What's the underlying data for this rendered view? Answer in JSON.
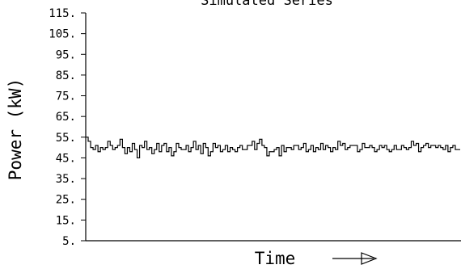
{
  "chart_data": {
    "type": "line",
    "title": "Simulated Series",
    "xlabel": "Time",
    "ylabel": "Power (kW)",
    "ylim": [
      5,
      115
    ],
    "y_ticks": [
      "115.",
      "105.",
      "95.",
      "85.",
      "75.",
      "65.",
      "55.",
      "45.",
      "35.",
      "25.",
      "15.",
      "5."
    ],
    "y_tick_values": [
      115,
      105,
      95,
      85,
      75,
      65,
      55,
      45,
      35,
      25,
      15,
      5
    ],
    "grid": false,
    "series": [
      {
        "values": [
          55,
          53,
          50,
          49,
          51,
          48,
          50,
          49,
          50,
          53,
          51,
          49,
          50,
          51,
          54,
          50,
          47,
          50,
          48,
          52,
          49,
          45,
          51,
          50,
          53,
          49,
          50,
          47,
          49,
          52,
          48,
          51,
          52,
          48,
          50,
          46,
          48,
          52,
          50,
          49,
          49,
          51,
          48,
          50,
          53,
          49,
          51,
          47,
          52,
          50,
          46,
          48,
          52,
          50,
          51,
          48,
          49,
          51,
          48,
          50,
          49,
          48,
          50,
          51,
          49,
          49,
          51,
          51,
          53,
          49,
          52,
          54,
          51,
          50,
          46,
          48,
          48,
          49,
          50,
          46,
          51,
          48,
          50,
          50,
          49,
          51,
          51,
          49,
          50,
          52,
          48,
          49,
          51,
          48,
          50,
          49,
          52,
          49,
          51,
          50,
          48,
          50,
          49,
          53,
          51,
          52,
          49,
          50,
          51,
          51,
          51,
          48,
          49,
          52,
          50,
          50,
          51,
          50,
          48,
          49,
          51,
          50,
          51,
          49,
          48,
          49,
          51,
          49,
          49,
          51,
          50,
          49,
          50,
          53,
          51,
          52,
          48,
          50,
          51,
          52,
          50,
          51,
          51,
          50,
          51,
          50,
          49,
          51,
          48,
          50,
          51,
          49,
          49
        ]
      }
    ]
  },
  "x_arrow_icon": "right-arrow-icon"
}
